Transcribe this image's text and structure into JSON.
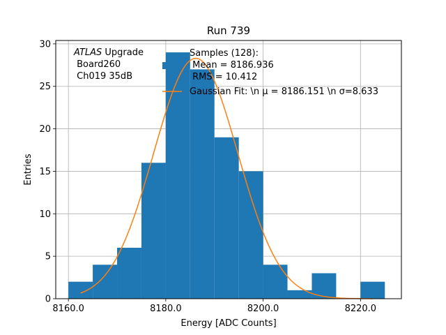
{
  "chart_data": {
    "type": "bar",
    "title": "Run 739",
    "xlabel": "Energy [ADC Counts]",
    "ylabel": "Entries",
    "xlim": [
      8157.4,
      8228.4
    ],
    "ylim": [
      0,
      30.4
    ],
    "x_ticks": [
      {
        "value": 8160,
        "label": "8160.0"
      },
      {
        "value": 8180,
        "label": "8180.0"
      },
      {
        "value": 8200,
        "label": "8200.0"
      },
      {
        "value": 8220,
        "label": "8220.0"
      }
    ],
    "y_ticks": [
      {
        "value": 0,
        "label": "0"
      },
      {
        "value": 5,
        "label": "5"
      },
      {
        "value": 10,
        "label": "10"
      },
      {
        "value": 15,
        "label": "15"
      },
      {
        "value": 20,
        "label": "20"
      },
      {
        "value": 25,
        "label": "25"
      },
      {
        "value": 30,
        "label": "30"
      }
    ],
    "grid": true,
    "histogram": {
      "name": "Samples (128):\n Mean = 8186.936\n RMS = 10.412",
      "color": "#1f77b4",
      "bin_edges": [
        8160.0,
        8165.0,
        8170.0,
        8175.0,
        8180.0,
        8185.0,
        8190.0,
        8195.0,
        8200.0,
        8205.0,
        8210.0,
        8215.0,
        8220.0,
        8225.0
      ],
      "counts": [
        2,
        4,
        6,
        16,
        29,
        27,
        19,
        15,
        4,
        1,
        3,
        0,
        2
      ]
    },
    "fit": {
      "name": "Gaussian Fit: \\n $\\mu$ = 8186.151 \\n $\\sigma$=8.633",
      "legend_text": "Gaussian Fit: \\n μ = 8186.151 \\n σ=8.633",
      "color": "#ff7f0e",
      "mu": 8186.151,
      "sigma": 8.633,
      "amplitude": 28.3,
      "x_range": [
        8162.5,
        8222.5
      ]
    },
    "annotation": {
      "italic": "ATLAS",
      "line1_rest": " Upgrade",
      "line2": " Board260",
      "line3": " Ch019 35dB"
    },
    "legend": {
      "placement": "top-right",
      "hist_lines": [
        "Samples (128):",
        " Mean = 8186.936",
        " RMS = 10.412"
      ]
    }
  }
}
